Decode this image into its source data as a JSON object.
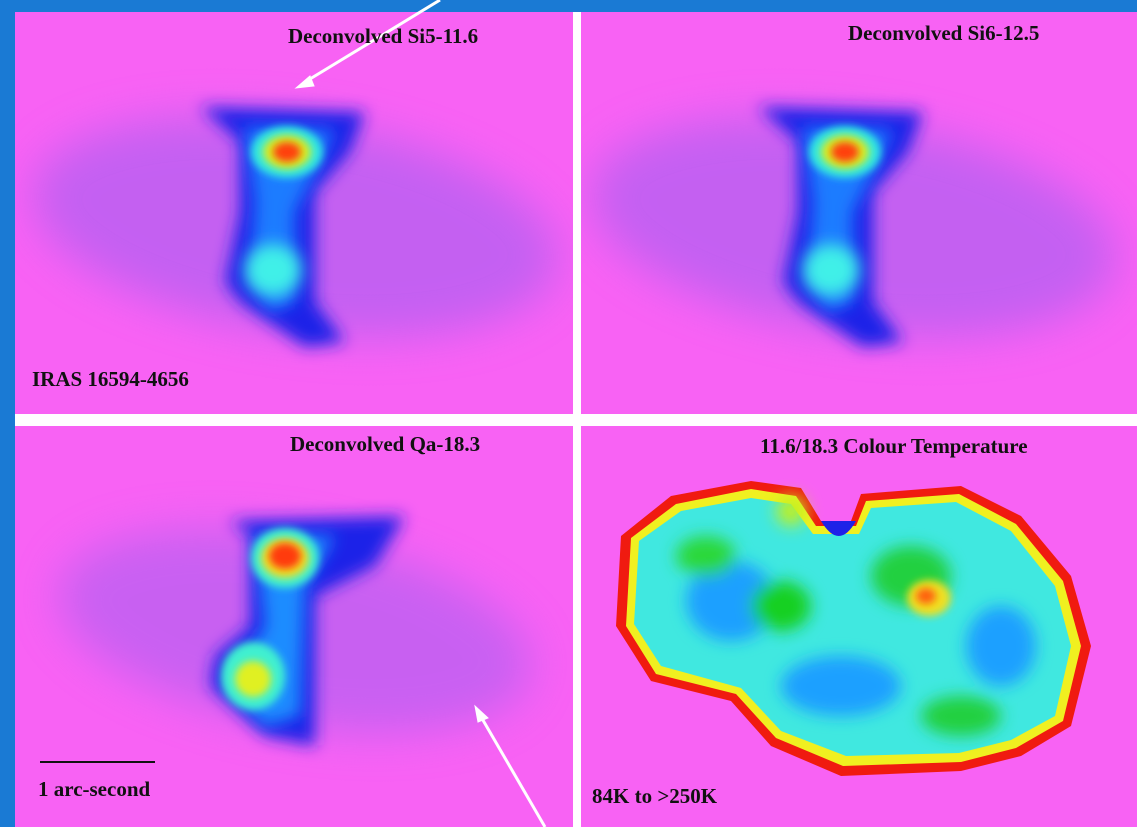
{
  "panels": [
    {
      "title": "Deconvolved Si5-11.6",
      "label": "IRAS 16594-4656"
    },
    {
      "title": "Deconvolved Si6-12.5"
    },
    {
      "title": "Deconvolved Qa-18.3",
      "label": "1 arc-second"
    },
    {
      "title": "11.6/18.3 Colour Temperature",
      "label": "84K to >250K"
    }
  ]
}
